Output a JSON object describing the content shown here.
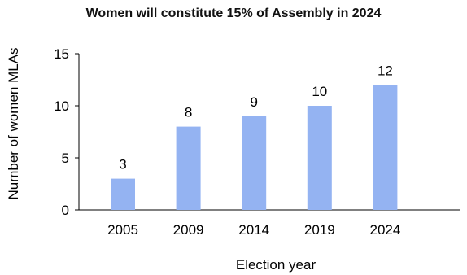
{
  "chart_data": {
    "type": "bar",
    "title": "Women will constitute 15% of Assembly in 2024",
    "xlabel": "Election year",
    "ylabel": "Number of  women MLAs",
    "categories": [
      "2005",
      "2009",
      "2014",
      "2019",
      "2024"
    ],
    "values": [
      3,
      8,
      9,
      10,
      12
    ],
    "ylim": [
      0,
      15
    ],
    "yticks": [
      0,
      5,
      10,
      15
    ],
    "data_labels": true,
    "grid": false,
    "legend": "none",
    "bar_color": "#94b3f2"
  }
}
